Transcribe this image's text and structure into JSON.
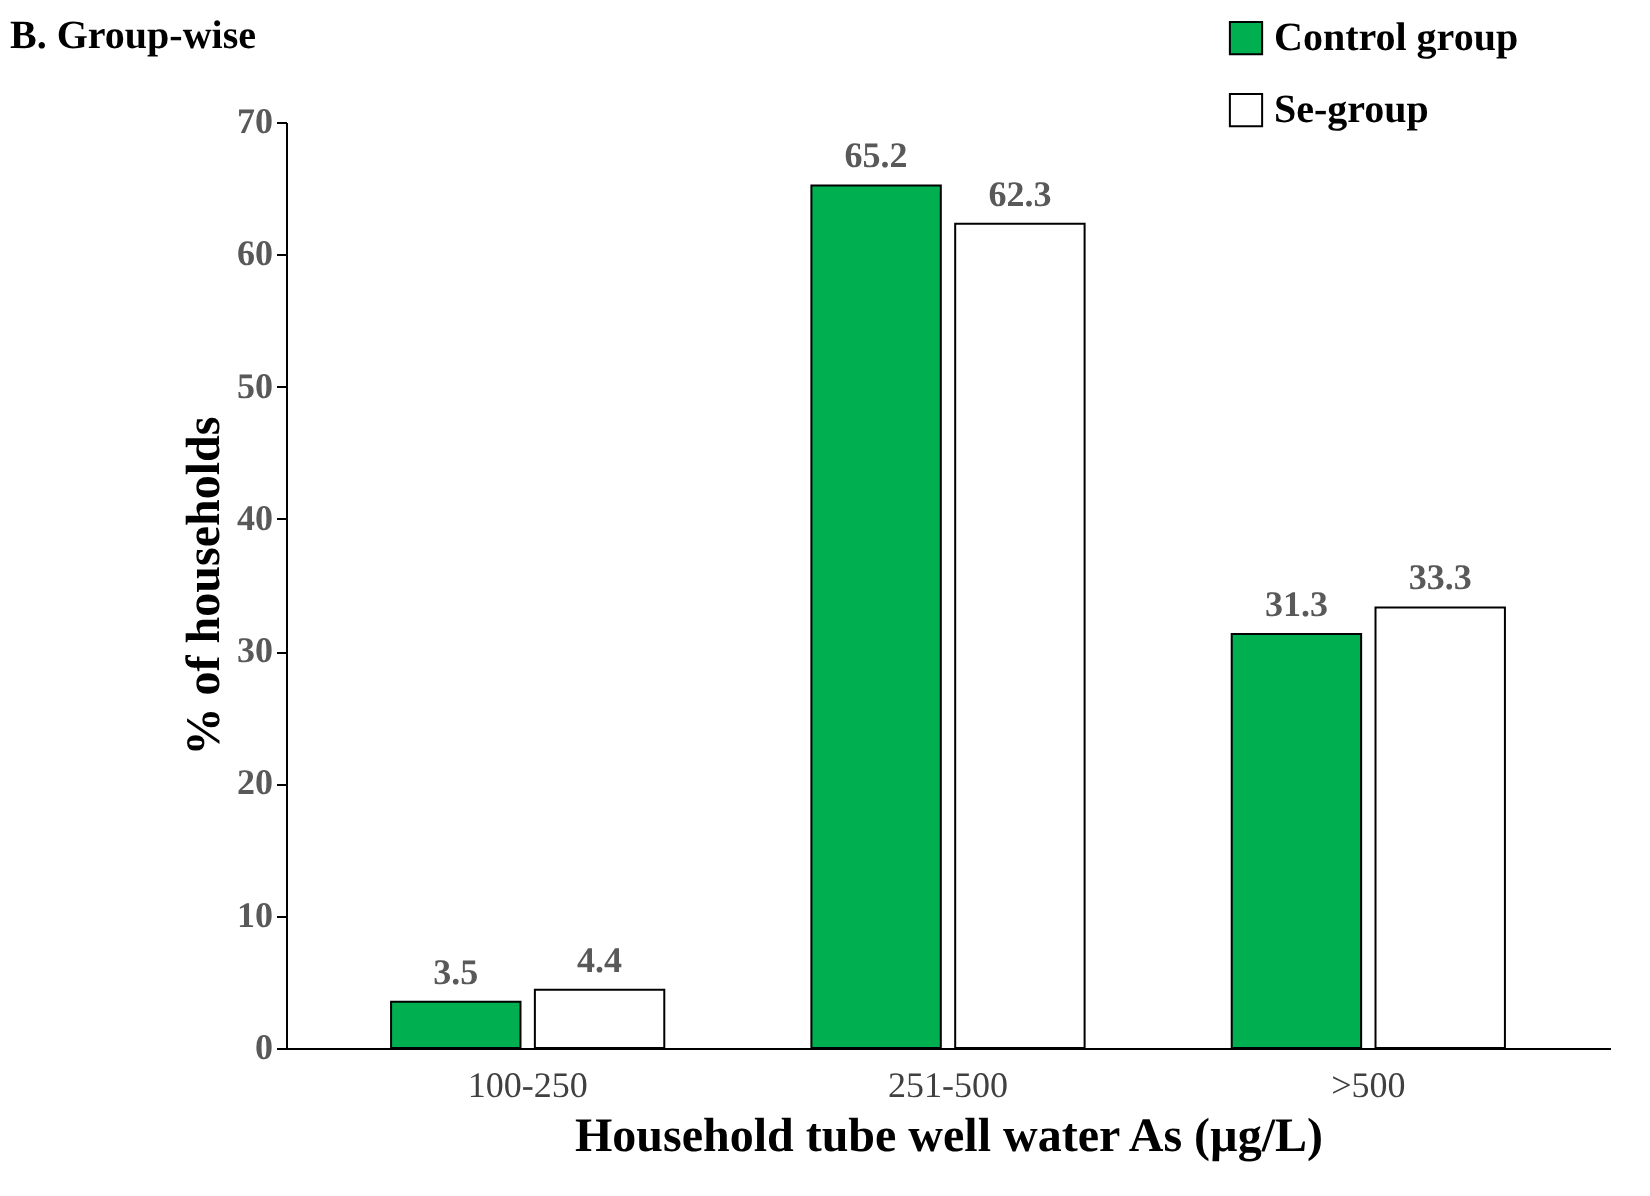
{
  "chart_data": {
    "type": "bar",
    "title": "B. Group-wise",
    "xlabel": "Household tube well water As (µg/L)",
    "ylabel": "% of households",
    "categories": [
      "100-250",
      "251-500",
      ">500"
    ],
    "series": [
      {
        "name": "Control group",
        "color": "#00b050",
        "values": [
          3.5,
          65.2,
          31.3
        ]
      },
      {
        "name": "Se-group",
        "color": "#ffffff",
        "values": [
          4.4,
          62.3,
          33.3
        ]
      }
    ],
    "ylim": [
      0,
      70
    ],
    "yticks": [
      0,
      10,
      20,
      30,
      40,
      50,
      60,
      70
    ],
    "data_labels": true,
    "legend": "top right"
  }
}
